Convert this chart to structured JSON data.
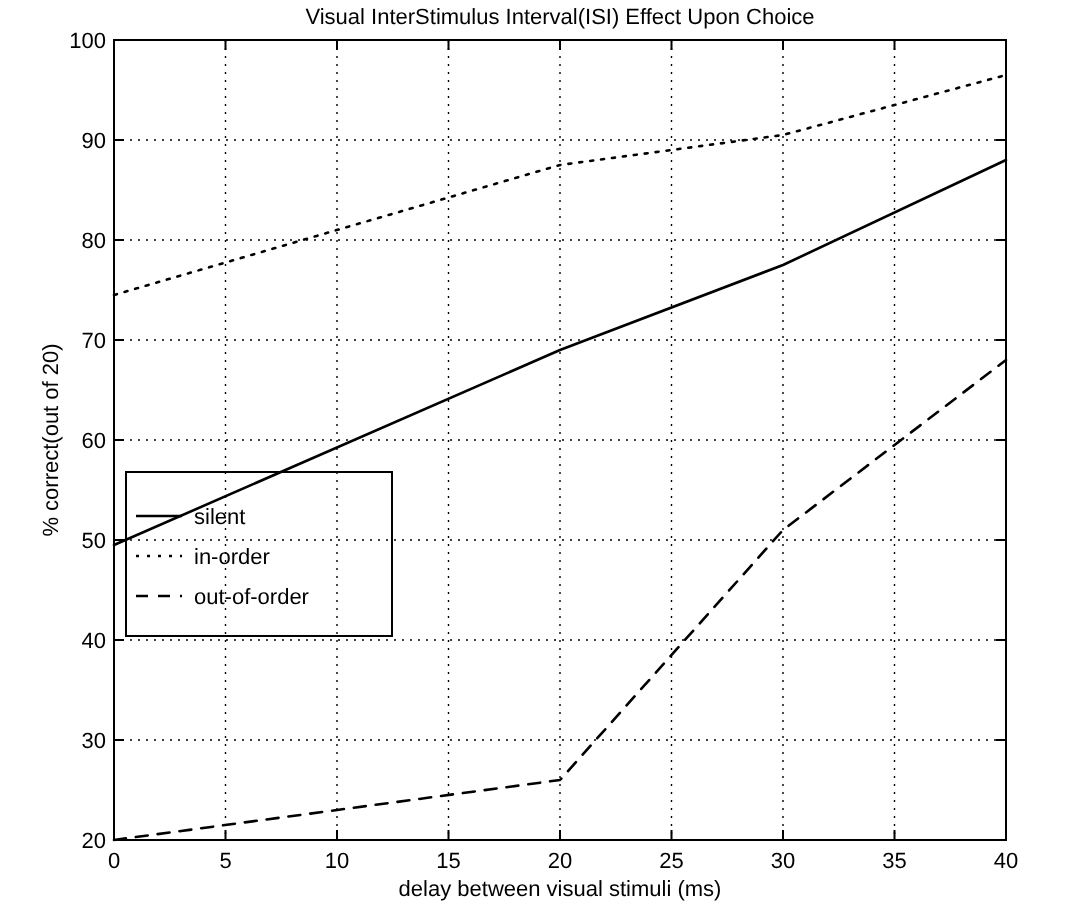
{
  "chart_data": {
    "type": "line",
    "title": "Visual InterStimulus Interval(ISI) Effect Upon Choice",
    "xlabel": "delay between visual stimuli (ms)",
    "ylabel": "% correct(out of 20)",
    "x": [
      0,
      20,
      30,
      40
    ],
    "series": [
      {
        "name": "silent",
        "color": "#000000",
        "line_style": "solid",
        "values": [
          49.5,
          69,
          77.5,
          88
        ]
      },
      {
        "name": "in-order",
        "color": "#000000",
        "line_style": "dotted",
        "values": [
          74.5,
          87.5,
          90.5,
          96.5
        ]
      },
      {
        "name": "out-of-order",
        "color": "#000000",
        "line_style": "dashed",
        "values": [
          20,
          26,
          51,
          68
        ]
      }
    ],
    "xlim": [
      0,
      40
    ],
    "xticks": [
      0,
      5,
      10,
      15,
      20,
      25,
      30,
      35,
      40
    ],
    "ylim": [
      20,
      100
    ],
    "yticks": [
      20,
      30,
      40,
      50,
      60,
      70,
      80,
      90,
      100
    ],
    "grid": true,
    "legend": "left",
    "marker": "none"
  }
}
